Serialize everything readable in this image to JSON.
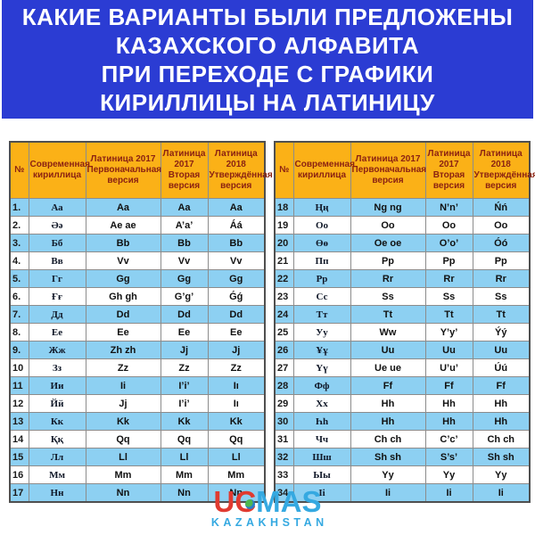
{
  "title": {
    "lines": [
      "КАКИЕ ВАРИАНТЫ БЫЛИ ПРЕДЛОЖЕНЫ",
      "КАЗАХСКОГО АЛФАВИТА",
      "ПРИ ПЕРЕХОДЕ С ГРАФИКИ",
      "КИРИЛЛИЦЫ НА ЛАТИНИЦУ"
    ]
  },
  "table_headers": [
    "№",
    "Современная кириллица",
    "Латиница 2017 Первоначальная версия",
    "Латиница 2017 Вторая версия",
    "Латиница 2018 Утверждённая версия"
  ],
  "tables": {
    "left": {
      "rows": [
        [
          "1.",
          "Аа",
          "Aa",
          "Aa",
          "Aa"
        ],
        [
          "2.",
          "Әә",
          "Ae ae",
          "A’a’",
          "Áá"
        ],
        [
          "3.",
          "Бб",
          "Bb",
          "Bb",
          "Bb"
        ],
        [
          "4.",
          "Вв",
          "Vv",
          "Vv",
          "Vv"
        ],
        [
          "5.",
          "Гг",
          "Gg",
          "Gg",
          "Gg"
        ],
        [
          "6.",
          "Ғғ",
          "Gh gh",
          "G’g’",
          "Ǵǵ"
        ],
        [
          "7.",
          "Дд",
          "Dd",
          "Dd",
          "Dd"
        ],
        [
          "8.",
          "Ее",
          "Ee",
          "Ee",
          "Ee"
        ],
        [
          "9.",
          "Жж",
          "Zh zh",
          "Jj",
          "Jj"
        ],
        [
          "10",
          "Зз",
          "Zz",
          "Zz",
          "Zz"
        ],
        [
          "11",
          "Ии",
          "Ii",
          "I’i’",
          "Iı"
        ],
        [
          "12",
          "Йй",
          "Jj",
          "I’i’",
          "Iı"
        ],
        [
          "13",
          "Кк",
          "Kk",
          "Kk",
          "Kk"
        ],
        [
          "14",
          "Ққ",
          "Qq",
          "Qq",
          "Qq"
        ],
        [
          "15",
          "Лл",
          "Ll",
          "Ll",
          "Ll"
        ],
        [
          "16",
          "Мм",
          "Mm",
          "Mm",
          "Mm"
        ],
        [
          "17",
          "Нн",
          "Nn",
          "Nn",
          "Nn"
        ]
      ]
    },
    "right": {
      "rows": [
        [
          "18",
          "Ңң",
          "Ng ng",
          "N’n’",
          "Ńń"
        ],
        [
          "19",
          "Оо",
          "Oo",
          "Oo",
          "Oo"
        ],
        [
          "20",
          "Өө",
          "Oe oe",
          "O’o’",
          "Óó"
        ],
        [
          "21",
          "Пп",
          "Pp",
          "Pp",
          "Pp"
        ],
        [
          "22",
          "Рр",
          "Rr",
          "Rr",
          "Rr"
        ],
        [
          "23",
          "Сс",
          "Ss",
          "Ss",
          "Ss"
        ],
        [
          "24",
          "Тт",
          "Tt",
          "Tt",
          "Tt"
        ],
        [
          "25",
          "Уу",
          "Ww",
          "Y’y’",
          "Ýý"
        ],
        [
          "26",
          "Ұұ",
          "Uu",
          "Uu",
          "Uu"
        ],
        [
          "27",
          "Үү",
          "Ue ue",
          "U’u’",
          "Úú"
        ],
        [
          "28",
          "Фф",
          "Ff",
          "Ff",
          "Ff"
        ],
        [
          "29",
          "Хх",
          "Hh",
          "Hh",
          "Hh"
        ],
        [
          "30",
          "Һһ",
          "Hh",
          "Hh",
          "Hh"
        ],
        [
          "31",
          "Чч",
          "Ch ch",
          "C’c’",
          "Ch ch"
        ],
        [
          "32",
          "Шш",
          "Sh sh",
          "S’s’",
          "Sh sh"
        ],
        [
          "33",
          "Ыы",
          "Yy",
          "Yy",
          "Yy"
        ],
        [
          "34",
          "Іі",
          "Ii",
          "Ii",
          "Ii"
        ]
      ]
    }
  },
  "logo": {
    "part1": "U",
    "part2": "C",
    "part3": "MAS",
    "subtitle": "KAZAKHSTAN",
    "globe_icon": "globe-icon"
  },
  "colors": {
    "banner_bg": "#2b3cd3",
    "banner_text": "#ffffff",
    "header_bg": "#fbb117",
    "header_text": "#8b2212",
    "row_blue": "#8dd0f2",
    "row_white": "#ffffff",
    "logo_red": "#e03a30",
    "logo_cyan": "#35a9e1"
  }
}
